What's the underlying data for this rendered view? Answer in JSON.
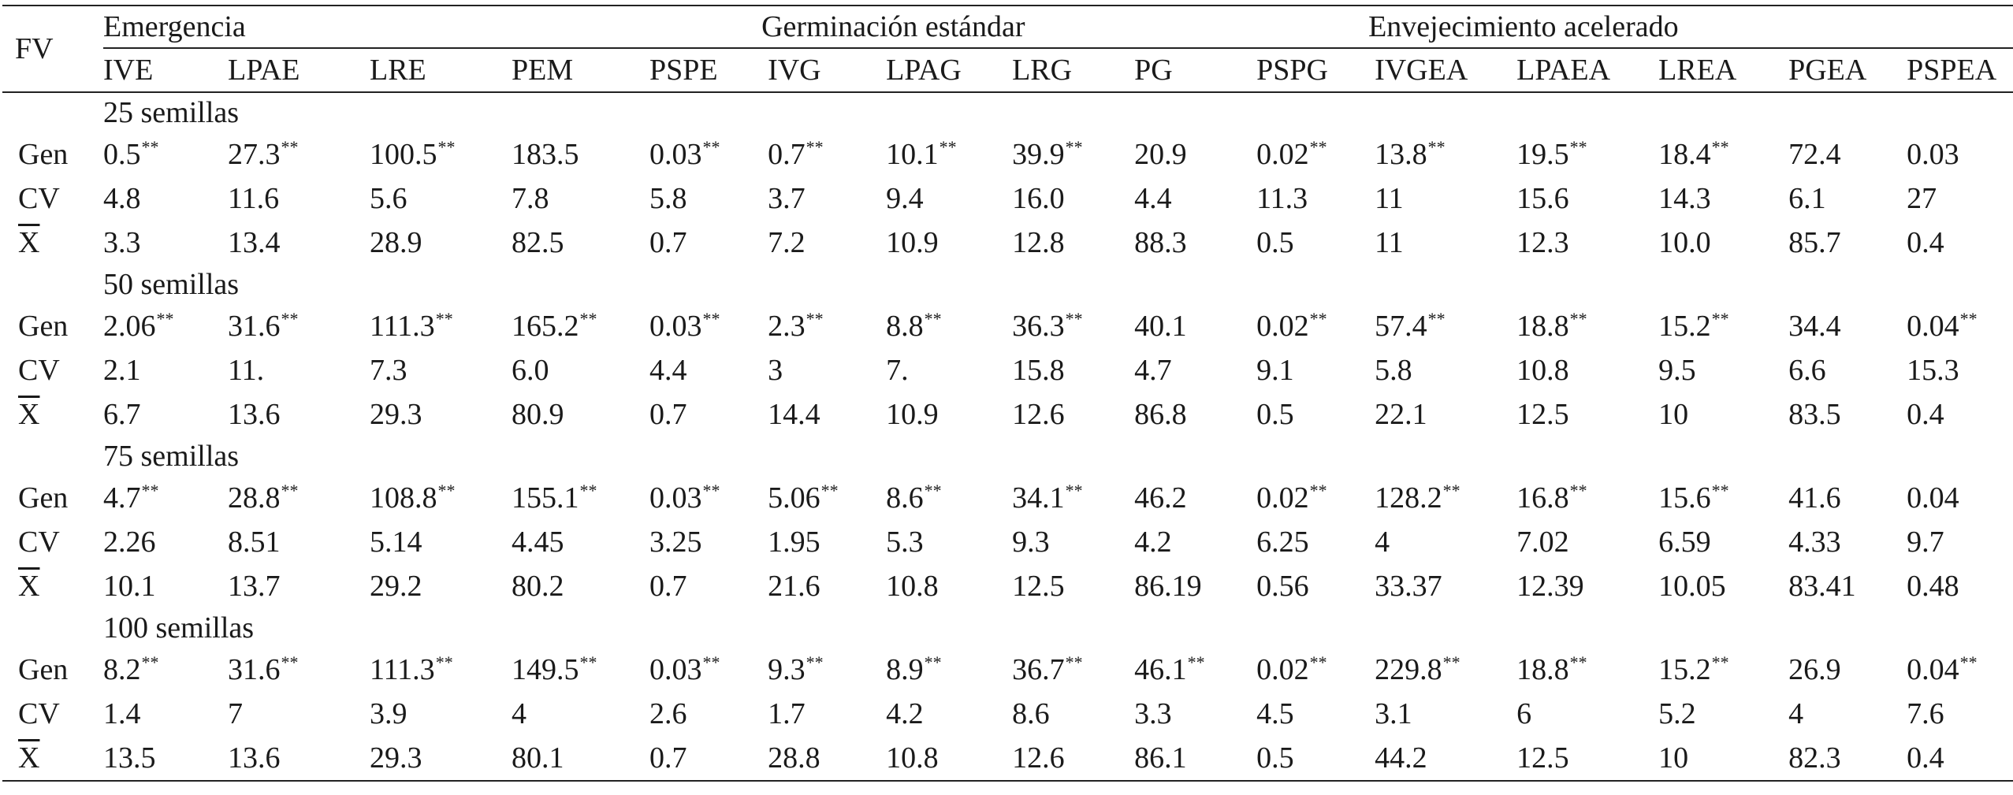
{
  "table": {
    "fv_label": "FV",
    "groups": [
      {
        "label": "Emergencia",
        "span": 5
      },
      {
        "label": "Germinación estándar",
        "span": 5
      },
      {
        "label": "Envejecimiento acelerado",
        "span": 5
      }
    ],
    "columns": [
      "IVE",
      "LPAE",
      "LRE",
      "PEM",
      "PSPE",
      "IVG",
      "LPAG",
      "LRG",
      "PG",
      "PSPG",
      "IVGEA",
      "LPAEA",
      "LREA",
      "PGEA",
      "PSPEA"
    ],
    "significance_marker": "**",
    "sections": [
      {
        "label": "25 semillas",
        "rows": [
          {
            "label": "Gen",
            "values": [
              "0.5",
              "27.3",
              "100.5",
              "183.5",
              "0.03",
              "0.7",
              "10.1",
              "39.9",
              "20.9",
              "0.02",
              "13.8",
              "19.5",
              "18.4",
              "72.4",
              "0.03"
            ],
            "sig": [
              1,
              1,
              1,
              0,
              1,
              1,
              1,
              1,
              0,
              1,
              1,
              1,
              1,
              0,
              0
            ]
          },
          {
            "label": "CV",
            "values": [
              "4.8",
              "11.6",
              "5.6",
              "7.8",
              "5.8",
              "3.7",
              "9.4",
              "16.0",
              "4.4",
              "11.3",
              "11",
              "15.6",
              "14.3",
              "6.1",
              "27"
            ],
            "sig": [
              0,
              0,
              0,
              0,
              0,
              0,
              0,
              0,
              0,
              0,
              0,
              0,
              0,
              0,
              0
            ]
          },
          {
            "label": "X",
            "values": [
              "3.3",
              "13.4",
              "28.9",
              "82.5",
              "0.7",
              "7.2",
              "10.9",
              "12.8",
              "88.3",
              "0.5",
              "11",
              "12.3",
              "10.0",
              "85.7",
              "0.4"
            ],
            "sig": [
              0,
              0,
              0,
              0,
              0,
              0,
              0,
              0,
              0,
              0,
              0,
              0,
              0,
              0,
              0
            ],
            "overline": true
          }
        ]
      },
      {
        "label": "50 semillas",
        "rows": [
          {
            "label": "Gen",
            "values": [
              "2.06",
              "31.6",
              "111.3",
              "165.2",
              "0.03",
              "2.3",
              "8.8",
              "36.3",
              "40.1",
              "0.02",
              "57.4",
              "18.8",
              "15.2",
              "34.4",
              "0.04"
            ],
            "sig": [
              1,
              1,
              1,
              1,
              1,
              1,
              1,
              1,
              0,
              1,
              1,
              1,
              1,
              0,
              1
            ]
          },
          {
            "label": "CV",
            "values": [
              "2.1",
              "11.",
              "7.3",
              "6.0",
              "4.4",
              "3",
              "7.",
              "15.8",
              "4.7",
              "9.1",
              "5.8",
              "10.8",
              "9.5",
              "6.6",
              "15.3"
            ],
            "sig": [
              0,
              0,
              0,
              0,
              0,
              0,
              0,
              0,
              0,
              0,
              0,
              0,
              0,
              0,
              0
            ]
          },
          {
            "label": "X",
            "values": [
              "6.7",
              "13.6",
              "29.3",
              "80.9",
              "0.7",
              "14.4",
              "10.9",
              "12.6",
              "86.8",
              "0.5",
              "22.1",
              "12.5",
              "10",
              "83.5",
              "0.4"
            ],
            "sig": [
              0,
              0,
              0,
              0,
              0,
              0,
              0,
              0,
              0,
              0,
              0,
              0,
              0,
              0,
              0
            ],
            "overline": true
          }
        ]
      },
      {
        "label": "75 semillas",
        "rows": [
          {
            "label": "Gen",
            "values": [
              "4.7",
              "28.8",
              "108.8",
              "155.1",
              "0.03",
              "5.06",
              "8.6",
              "34.1",
              "46.2",
              "0.02",
              "128.2",
              "16.8",
              "15.6",
              "41.6",
              "0.04"
            ],
            "sig": [
              1,
              1,
              1,
              1,
              1,
              1,
              1,
              1,
              0,
              1,
              1,
              1,
              1,
              0,
              0
            ]
          },
          {
            "label": "CV",
            "values": [
              "2.26",
              "8.51",
              "5.14",
              "4.45",
              "3.25",
              "1.95",
              "5.3",
              "9.3",
              "4.2",
              "6.25",
              "4",
              "7.02",
              "6.59",
              "4.33",
              "9.7"
            ],
            "sig": [
              0,
              0,
              0,
              0,
              0,
              0,
              0,
              0,
              0,
              0,
              0,
              0,
              0,
              0,
              0
            ]
          },
          {
            "label": "X",
            "values": [
              "10.1",
              "13.7",
              "29.2",
              "80.2",
              "0.7",
              "21.6",
              "10.8",
              "12.5",
              "86.19",
              "0.56",
              "33.37",
              "12.39",
              "10.05",
              "83.41",
              "0.48"
            ],
            "sig": [
              0,
              0,
              0,
              0,
              0,
              0,
              0,
              0,
              0,
              0,
              0,
              0,
              0,
              0,
              0
            ],
            "overline": true
          }
        ]
      },
      {
        "label": "100 semillas",
        "rows": [
          {
            "label": "Gen",
            "values": [
              "8.2",
              "31.6",
              "111.3",
              "149.5",
              "0.03",
              "9.3",
              "8.9",
              "36.7",
              "46.1",
              "0.02",
              "229.8",
              "18.8",
              "15.2",
              "26.9",
              "0.04"
            ],
            "sig": [
              1,
              1,
              1,
              1,
              1,
              1,
              1,
              1,
              1,
              1,
              1,
              1,
              1,
              0,
              1
            ]
          },
          {
            "label": "CV",
            "values": [
              "1.4",
              "7",
              "3.9",
              "4",
              "2.6",
              "1.7",
              "4.2",
              "8.6",
              "3.3",
              "4.5",
              "3.1",
              "6",
              "5.2",
              "4",
              "7.6"
            ],
            "sig": [
              0,
              0,
              0,
              0,
              0,
              0,
              0,
              0,
              0,
              0,
              0,
              0,
              0,
              0,
              0
            ]
          },
          {
            "label": "X",
            "values": [
              "13.5",
              "13.6",
              "29.3",
              "80.1",
              "0.7",
              "28.8",
              "10.8",
              "12.6",
              "86.1",
              "0.5",
              "44.2",
              "12.5",
              "10",
              "82.3",
              "0.4"
            ],
            "sig": [
              0,
              0,
              0,
              0,
              0,
              0,
              0,
              0,
              0,
              0,
              0,
              0,
              0,
              0,
              0
            ],
            "overline": true
          }
        ]
      }
    ]
  }
}
